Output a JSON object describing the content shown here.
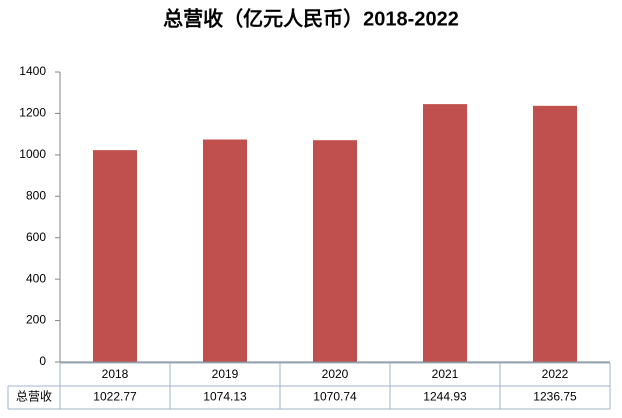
{
  "chart_data": {
    "type": "bar",
    "title": "总营收（亿元人民币）2018-2022",
    "categories": [
      "2018",
      "2019",
      "2020",
      "2021",
      "2022"
    ],
    "series": [
      {
        "name": "总营收",
        "color": "#c0504d",
        "values": [
          1022.77,
          1074.13,
          1070.74,
          1244.93,
          1236.75
        ]
      }
    ],
    "ylim": [
      0,
      1400
    ],
    "yticks": [
      0,
      200,
      400,
      600,
      800,
      1000,
      1200,
      1400
    ],
    "grid": false
  }
}
